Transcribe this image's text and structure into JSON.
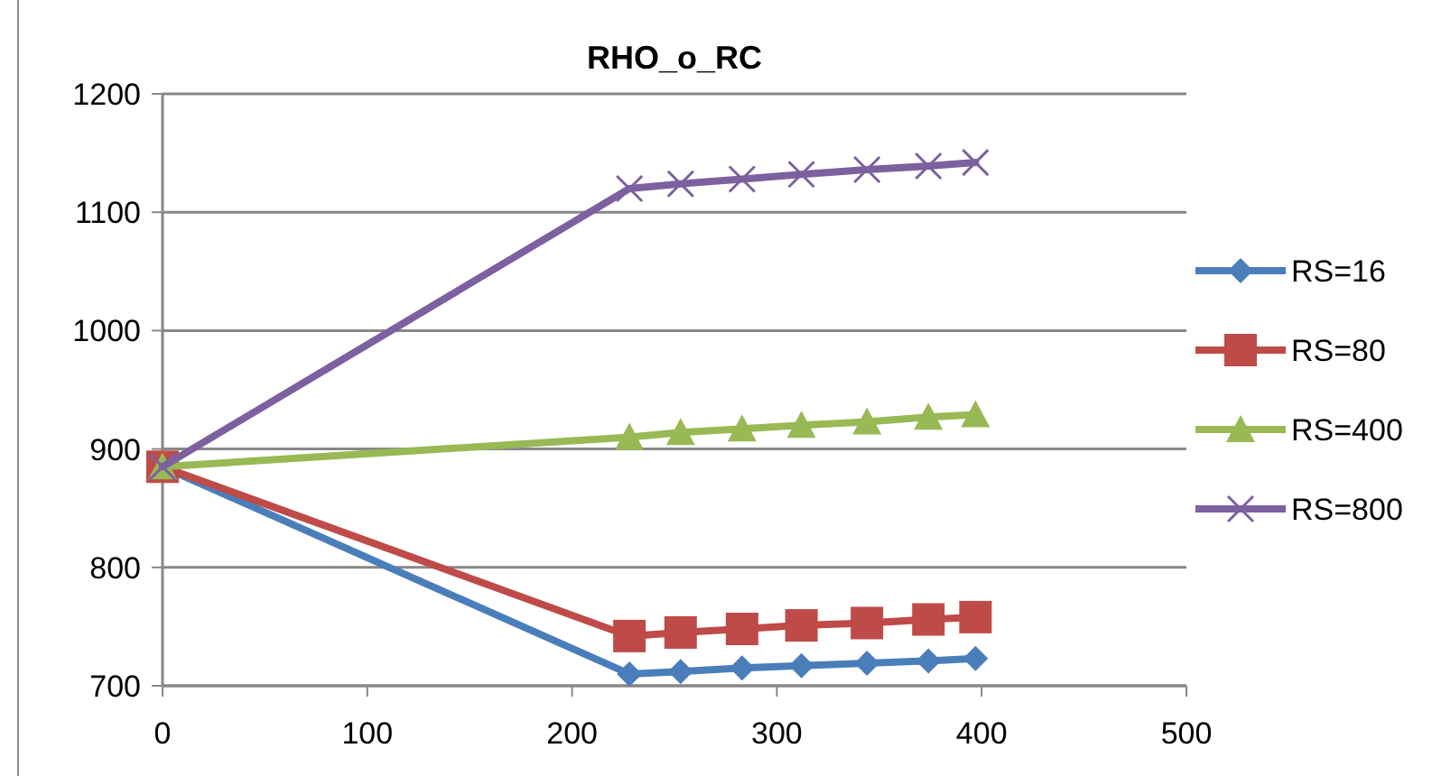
{
  "chart_data": {
    "type": "line",
    "title": "RHO_o_RC",
    "x": [
      0,
      228,
      253,
      283,
      312,
      344,
      374,
      397
    ],
    "series": [
      {
        "name": "RS=16",
        "color": "#4a7ebb",
        "marker": "diamond",
        "values": [
          885,
          710,
          712,
          715,
          717,
          719,
          721,
          723
        ]
      },
      {
        "name": "RS=80",
        "color": "#be4b48",
        "marker": "square",
        "values": [
          885,
          742,
          745,
          748,
          751,
          753,
          756,
          758
        ]
      },
      {
        "name": "RS=400",
        "color": "#98b954",
        "marker": "triangle",
        "values": [
          885,
          910,
          914,
          917,
          920,
          923,
          927,
          929
        ]
      },
      {
        "name": "RS=800",
        "color": "#7d60a0",
        "marker": "cross",
        "values": [
          885,
          1120,
          1124,
          1128,
          1132,
          1136,
          1139,
          1142
        ]
      }
    ],
    "xlim": [
      0,
      500
    ],
    "xticks": [
      0,
      100,
      200,
      300,
      400,
      500
    ],
    "ylim": [
      700,
      1200
    ],
    "yticks": [
      700,
      800,
      900,
      1000,
      1100,
      1200
    ],
    "grid": "y",
    "legend": "right"
  }
}
